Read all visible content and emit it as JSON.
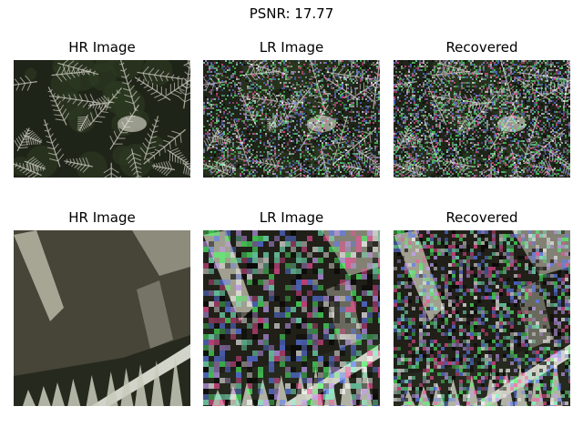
{
  "figure": {
    "suptitle": "PSNR: 17.77"
  },
  "panels": {
    "row1": [
      {
        "title": "HR Image",
        "kind": "hr"
      },
      {
        "title": "LR Image",
        "kind": "lr"
      },
      {
        "title": "Recovered",
        "kind": "rec"
      }
    ],
    "row2": [
      {
        "title": "HR Image",
        "kind": "hr"
      },
      {
        "title": "LR Image",
        "kind": "lr"
      },
      {
        "title": "Recovered",
        "kind": "rec"
      }
    ]
  },
  "colors": {
    "background": "#ffffff",
    "foliage_dark": "#1f2418",
    "foliage_light": "#c9c8bd",
    "noise_dark": "#0d0d0a"
  }
}
